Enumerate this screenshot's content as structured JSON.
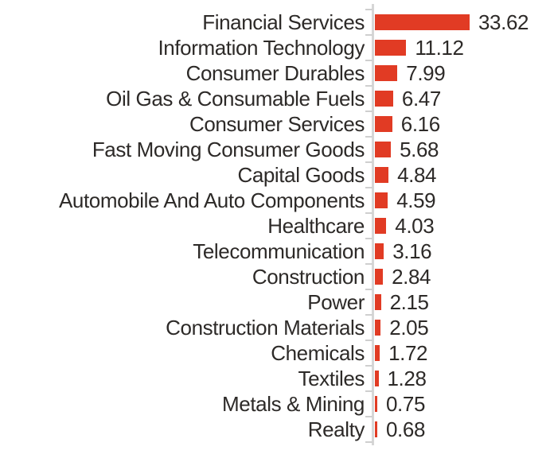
{
  "chart_data": {
    "type": "bar",
    "orientation": "horizontal",
    "title": "",
    "xlabel": "",
    "ylabel": "",
    "grid": false,
    "legend": "none",
    "xlim": [
      0,
      33.62
    ],
    "categories": [
      "Financial Services",
      "Information Technology",
      "Consumer Durables",
      "Oil Gas & Consumable Fuels",
      "Consumer Services",
      "Fast Moving Consumer Goods",
      "Capital Goods",
      "Automobile And Auto Components",
      "Healthcare",
      "Telecommunication",
      "Construction",
      "Power",
      "Construction Materials",
      "Chemicals",
      "Textiles",
      "Metals & Mining",
      "Realty"
    ],
    "values": [
      33.62,
      11.12,
      7.99,
      6.47,
      6.16,
      5.68,
      4.84,
      4.59,
      4.03,
      3.16,
      2.84,
      2.15,
      2.05,
      1.72,
      1.28,
      0.75,
      0.68
    ],
    "value_labels": [
      "33.62",
      "11.12",
      "7.99",
      "6.47",
      "6.16",
      "5.68",
      "4.84",
      "4.59",
      "4.03",
      "3.16",
      "2.84",
      "2.15",
      "2.05",
      "1.72",
      "1.28",
      "0.75",
      "0.68"
    ],
    "colors": {
      "bar": "#e13b24",
      "axis_line": "#d6d6d6",
      "tick": "#cfcfcf",
      "text": "#2d2a28",
      "background": "#ffffff"
    }
  }
}
